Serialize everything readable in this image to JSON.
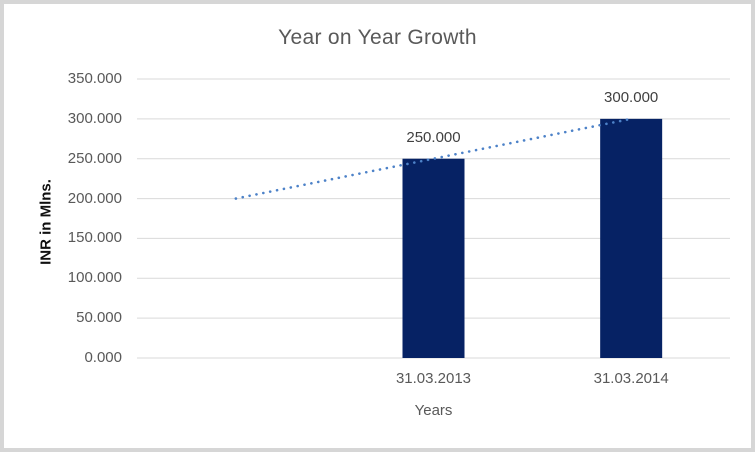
{
  "chart_data": {
    "type": "bar",
    "title": "Year on Year Growth",
    "xlabel": "Years",
    "ylabel": "INR in Mlns.",
    "ylim": [
      0,
      350
    ],
    "grid": true,
    "legend": "none",
    "yticks": [
      {
        "value": 0,
        "label": "0.000"
      },
      {
        "value": 50,
        "label": "50.000"
      },
      {
        "value": 100,
        "label": "100.000"
      },
      {
        "value": 150,
        "label": "150.000"
      },
      {
        "value": 200,
        "label": "200.000"
      },
      {
        "value": 250,
        "label": "250.000"
      },
      {
        "value": 300,
        "label": "300.000"
      },
      {
        "value": 350,
        "label": "350.000"
      }
    ],
    "slot_count": 3,
    "categories": [
      "31.03.2013",
      "31.03.2014"
    ],
    "values": [
      250,
      300
    ],
    "bars": [
      {
        "slot": 1,
        "category": "31.03.2013",
        "value": 250,
        "data_label": "250.000"
      },
      {
        "slot": 2,
        "category": "31.03.2014",
        "value": 300,
        "data_label": "300.000"
      }
    ],
    "trendline": {
      "style": "dotted",
      "start": {
        "slot": 0,
        "value": 200
      },
      "end": {
        "slot": 2,
        "value": 300
      }
    },
    "colors": {
      "bar": "#062264",
      "trendline": "#4D82C8",
      "gridline": "#D9D9D9",
      "title_text": "#595959",
      "tick_text": "#595959",
      "data_label_text": "#404040",
      "axis_title_text": "#101010",
      "frame_border": "#D6D6D6",
      "background": "#FFFFFF"
    }
  }
}
